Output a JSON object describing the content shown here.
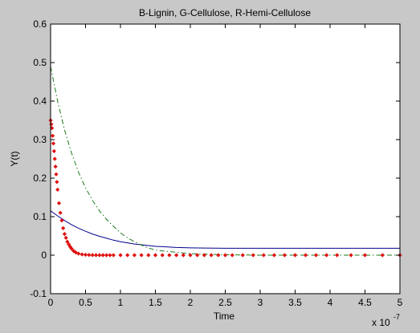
{
  "chart_data": {
    "type": "line",
    "title": "B-Lignin, G-Cellulose, R-Hemi-Cellulose",
    "xlabel": "Time",
    "ylabel": "Y(t)",
    "x_multiplier_label": "x 10",
    "x_multiplier_exponent": "-7",
    "xlim": [
      0,
      5
    ],
    "ylim": [
      -0.1,
      0.6
    ],
    "xticks": [
      "0",
      "0.5",
      "1",
      "1.5",
      "2",
      "2.5",
      "3",
      "3.5",
      "4",
      "4.5",
      "5"
    ],
    "yticks": [
      "-0.1",
      "0",
      "0.1",
      "0.2",
      "0.3",
      "0.4",
      "0.5",
      "0.6"
    ],
    "grid": false,
    "background_color": "#c8c8c8",
    "axes_color": "#ffffff",
    "series": [
      {
        "color": "#00008b",
        "style": "solid",
        "x": [
          0,
          0.1,
          0.2,
          0.3,
          0.4,
          0.5,
          0.6,
          0.7,
          0.8,
          0.9,
          1.0,
          1.1,
          1.2,
          1.3,
          1.4,
          1.5,
          1.6,
          1.8,
          2.0,
          2.5,
          3.0,
          3.5,
          4.0,
          4.5,
          5.0
        ],
        "y": [
          0.115,
          0.102,
          0.09,
          0.079,
          0.07,
          0.062,
          0.055,
          0.049,
          0.044,
          0.039,
          0.035,
          0.032,
          0.029,
          0.027,
          0.025,
          0.023,
          0.022,
          0.02,
          0.019,
          0.018,
          0.018,
          0.018,
          0.018,
          0.018,
          0.018
        ]
      },
      {
        "color": "#1a7a1a",
        "style": "dashdot",
        "x": [
          0,
          0.1,
          0.2,
          0.3,
          0.4,
          0.5,
          0.6,
          0.7,
          0.8,
          0.9,
          1.0,
          1.1,
          1.2,
          1.3,
          1.4,
          1.5,
          2.0,
          2.5,
          3.0,
          3.5,
          4.0,
          4.5,
          5.0
        ],
        "y": [
          0.49,
          0.4,
          0.325,
          0.265,
          0.215,
          0.175,
          0.142,
          0.115,
          0.093,
          0.075,
          0.058,
          0.045,
          0.035,
          0.026,
          0.019,
          0.013,
          0.004,
          0.001,
          0.0,
          0.0,
          0.0,
          0.0,
          0.0
        ]
      },
      {
        "color": "#e01010",
        "style": "markers",
        "x": [
          0,
          0.01,
          0.02,
          0.03,
          0.04,
          0.05,
          0.06,
          0.07,
          0.08,
          0.09,
          0.1,
          0.12,
          0.14,
          0.16,
          0.18,
          0.2,
          0.22,
          0.24,
          0.26,
          0.28,
          0.3,
          0.33,
          0.36,
          0.4,
          0.45,
          0.5,
          0.55,
          0.6,
          0.65,
          0.7,
          0.75,
          0.8,
          0.85,
          0.9,
          1.0,
          1.1,
          1.2,
          1.3,
          1.4,
          1.5,
          1.6,
          1.7,
          1.8,
          1.9,
          2.0,
          2.1,
          2.2,
          2.3,
          2.4,
          2.5,
          2.6,
          2.75,
          2.9,
          3.05,
          3.2,
          3.35,
          3.5,
          3.65,
          3.8,
          3.95,
          4.1,
          4.3,
          4.5,
          4.75,
          5.0
        ],
        "y": [
          0.35,
          0.34,
          0.33,
          0.31,
          0.29,
          0.27,
          0.25,
          0.23,
          0.21,
          0.19,
          0.17,
          0.135,
          0.11,
          0.09,
          0.07,
          0.055,
          0.045,
          0.035,
          0.028,
          0.022,
          0.017,
          0.011,
          0.007,
          0.004,
          0.002,
          0.001,
          0.0005,
          0.0002,
          0.0001,
          0.0,
          0.0,
          0.0,
          0.0,
          0.0,
          0.0,
          0.0,
          0.0,
          0.0,
          0.0,
          0.0,
          0.0,
          0.0,
          0.0,
          0.0,
          0.0,
          0.0,
          0.0,
          0.0,
          0.0,
          0.0,
          0.0,
          0.0,
          0.0,
          0.0,
          0.0,
          0.0,
          0.0,
          0.0,
          0.0,
          0.0,
          0.0,
          0.0,
          0.0,
          0.0,
          0.0
        ]
      }
    ]
  }
}
